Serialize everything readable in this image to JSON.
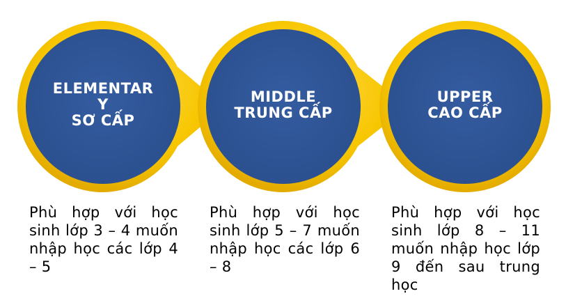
{
  "colors": {
    "circle_fill": "#2E5597",
    "ring_gold": "#F7C600",
    "ring_gold_dark": "#E0A800",
    "text_white": "#FFFFFF",
    "text_black": "#000000"
  },
  "stages": [
    {
      "title": "ELEMENTAR\nY\nSƠ CẤP",
      "description": "Phù hợp với học sinh lớp 3 – 4 muốn nhập học các lớp 4 – 5"
    },
    {
      "title": "MIDDLE\nTRUNG CẤP",
      "description": "Phù hợp với học sinh lớp 5 – 7 muốn nhập học các lớp 6 – 8"
    },
    {
      "title": "UPPER\nCAO CẤP",
      "description": "Phù hợp với học sinh lớp 8 – 11 muốn nhập học lớp 9 đến sau trung học"
    }
  ]
}
